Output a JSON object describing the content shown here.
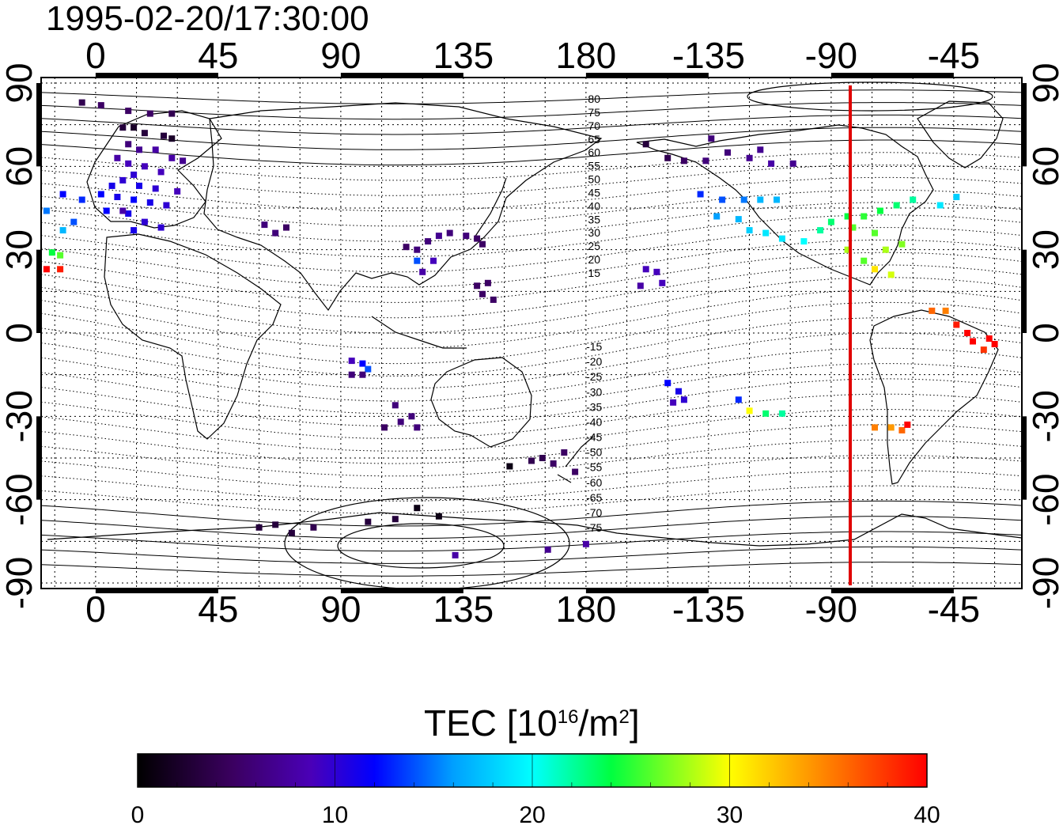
{
  "timestamp": "1995-02-20/17:30:00",
  "map": {
    "lon_ticks": [
      "0",
      "45",
      "90",
      "135",
      "180",
      "-135",
      "-90",
      "-45"
    ],
    "lon_tick_values": [
      0,
      45,
      90,
      135,
      180,
      225,
      270,
      315
    ],
    "lat_ticks": [
      "90",
      "60",
      "30",
      "0",
      "-30",
      "-60",
      "-90"
    ],
    "lat_tick_values": [
      90,
      60,
      30,
      0,
      -30,
      -60,
      -90
    ],
    "lon_range": [
      -20,
      340
    ],
    "lat_range": [
      -92,
      92
    ],
    "terminator_longitude": -83,
    "terminator_color": "#e00000",
    "contour_labels_north": [
      "80",
      "75",
      "70",
      "65",
      "60",
      "55",
      "50",
      "45",
      "40",
      "35",
      "30",
      "25",
      "20",
      "15"
    ],
    "contour_labels_south": [
      "-15",
      "-20",
      "-25",
      "-30",
      "-35",
      "-40",
      "-45",
      "-50",
      "-55",
      "-60",
      "-65",
      "-70",
      "-75"
    ]
  },
  "colorbar": {
    "title_main": "TEC  [10",
    "title_sup1": "16",
    "title_mid": "/m",
    "title_sup2": "2",
    "title_end": "]",
    "ticks": [
      "0",
      "10",
      "20",
      "30",
      "40"
    ],
    "tick_values": [
      0,
      10,
      20,
      30,
      40
    ],
    "range": [
      0,
      40
    ]
  },
  "chart_data": {
    "type": "scatter",
    "title": "1995-02-20/17:30:00",
    "xlabel": "",
    "ylabel": "",
    "value_label": "TEC [10^16/m^2]",
    "points": [
      [
        -5,
        83,
        4
      ],
      [
        2,
        82,
        5
      ],
      [
        12,
        80,
        5
      ],
      [
        20,
        79,
        5
      ],
      [
        28,
        79,
        4
      ],
      [
        10,
        74,
        3
      ],
      [
        14,
        74,
        2
      ],
      [
        18,
        72,
        3
      ],
      [
        25,
        71,
        3
      ],
      [
        28,
        70,
        2
      ],
      [
        12,
        68,
        6
      ],
      [
        16,
        66,
        7
      ],
      [
        22,
        66,
        8
      ],
      [
        28,
        63,
        8
      ],
      [
        32,
        62,
        7
      ],
      [
        8,
        63,
        8
      ],
      [
        12,
        61,
        9
      ],
      [
        18,
        60,
        9
      ],
      [
        24,
        58,
        9
      ],
      [
        14,
        57,
        10
      ],
      [
        10,
        55,
        10
      ],
      [
        6,
        53,
        11
      ],
      [
        16,
        53,
        11
      ],
      [
        22,
        52,
        10
      ],
      [
        30,
        51,
        9
      ],
      [
        2,
        50,
        12
      ],
      [
        8,
        49,
        11
      ],
      [
        14,
        48,
        12
      ],
      [
        20,
        47,
        11
      ],
      [
        26,
        46,
        10
      ],
      [
        -5,
        48,
        13
      ],
      [
        -12,
        50,
        12
      ],
      [
        -18,
        44,
        15
      ],
      [
        -12,
        37,
        17
      ],
      [
        -16,
        29,
        24
      ],
      [
        -13,
        28,
        26
      ],
      [
        -8,
        40,
        14
      ],
      [
        4,
        44,
        12
      ],
      [
        12,
        43,
        11
      ],
      [
        18,
        40,
        10
      ],
      [
        24,
        38,
        10
      ],
      [
        14,
        37,
        11
      ],
      [
        -18,
        23,
        40
      ],
      [
        -13,
        23,
        39
      ],
      [
        62,
        39,
        6
      ],
      [
        66,
        36,
        6
      ],
      [
        70,
        38,
        5
      ],
      [
        114,
        31,
        5
      ],
      [
        118,
        30,
        6
      ],
      [
        122,
        33,
        6
      ],
      [
        126,
        35,
        7
      ],
      [
        130,
        36,
        6
      ],
      [
        136,
        35,
        6
      ],
      [
        140,
        34,
        5
      ],
      [
        142,
        32,
        5
      ],
      [
        118,
        26,
        14
      ],
      [
        124,
        26,
        9
      ],
      [
        120,
        22,
        8
      ],
      [
        140,
        17,
        5
      ],
      [
        144,
        18,
        5
      ],
      [
        146,
        12,
        5
      ],
      [
        142,
        14,
        5
      ],
      [
        94,
        -10,
        9
      ],
      [
        98,
        -11,
        12
      ],
      [
        100,
        -13,
        14
      ],
      [
        94,
        -15,
        6
      ],
      [
        98,
        -15,
        6
      ],
      [
        110,
        -26,
        6
      ],
      [
        116,
        -30,
        6
      ],
      [
        112,
        -32,
        6
      ],
      [
        118,
        -34,
        6
      ],
      [
        106,
        -34,
        5
      ],
      [
        160,
        -46,
        4
      ],
      [
        164,
        -45,
        4
      ],
      [
        168,
        -47,
        5
      ],
      [
        172,
        -43,
        5
      ],
      [
        176,
        -50,
        5
      ],
      [
        152,
        -48,
        1
      ],
      [
        60,
        -70,
        3
      ],
      [
        66,
        -69,
        3
      ],
      [
        72,
        -72,
        3
      ],
      [
        80,
        -70,
        4
      ],
      [
        100,
        -68,
        3
      ],
      [
        110,
        -67,
        3
      ],
      [
        126,
        -66,
        1
      ],
      [
        118,
        -63,
        1
      ],
      [
        132,
        -80,
        8
      ],
      [
        180,
        -76,
        8
      ],
      [
        166,
        -78,
        7
      ],
      [
        202,
        23,
        9
      ],
      [
        206,
        22,
        9
      ],
      [
        208,
        18,
        9
      ],
      [
        200,
        17,
        8
      ],
      [
        210,
        -18,
        12
      ],
      [
        214,
        -21,
        11
      ],
      [
        216,
        -24,
        10
      ],
      [
        212,
        -25,
        9
      ],
      [
        202,
        68,
        3
      ],
      [
        210,
        63,
        4
      ],
      [
        216,
        62,
        5
      ],
      [
        224,
        62,
        6
      ],
      [
        232,
        65,
        6
      ],
      [
        240,
        63,
        7
      ],
      [
        248,
        61,
        8
      ],
      [
        256,
        61,
        7
      ],
      [
        226,
        70,
        6
      ],
      [
        244,
        66,
        7
      ],
      [
        222,
        50,
        13
      ],
      [
        230,
        48,
        14
      ],
      [
        238,
        48,
        15
      ],
      [
        244,
        48,
        17
      ],
      [
        250,
        48,
        17
      ],
      [
        228,
        42,
        16
      ],
      [
        236,
        41,
        17
      ],
      [
        240,
        37,
        18
      ],
      [
        246,
        36,
        19
      ],
      [
        252,
        34,
        19
      ],
      [
        260,
        33,
        20
      ],
      [
        266,
        37,
        22
      ],
      [
        270,
        40,
        23
      ],
      [
        276,
        42,
        24
      ],
      [
        282,
        42,
        25
      ],
      [
        288,
        44,
        24
      ],
      [
        294,
        46,
        23
      ],
      [
        300,
        48,
        22
      ],
      [
        278,
        38,
        26
      ],
      [
        286,
        36,
        26
      ],
      [
        290,
        30,
        28
      ],
      [
        296,
        32,
        27
      ],
      [
        276,
        30,
        28
      ],
      [
        282,
        26,
        26
      ],
      [
        286,
        23,
        31
      ],
      [
        292,
        21,
        29
      ],
      [
        310,
        46,
        19
      ],
      [
        316,
        49,
        18
      ],
      [
        307,
        8,
        36
      ],
      [
        312,
        8,
        35
      ],
      [
        316,
        3,
        39
      ],
      [
        322,
        -3,
        40
      ],
      [
        328,
        -2,
        40
      ],
      [
        326,
        -6,
        38
      ],
      [
        320,
        0,
        40
      ],
      [
        330,
        -4,
        41
      ],
      [
        236,
        -24,
        13
      ],
      [
        240,
        -28,
        30
      ],
      [
        246,
        -29,
        23
      ],
      [
        252,
        -29,
        22
      ],
      [
        286,
        -34,
        35
      ],
      [
        292,
        -34,
        34
      ],
      [
        296,
        -35,
        36
      ],
      [
        298,
        -33,
        40
      ],
      [
        354,
        78,
        4
      ],
      [
        10,
        44,
        8
      ]
    ]
  }
}
